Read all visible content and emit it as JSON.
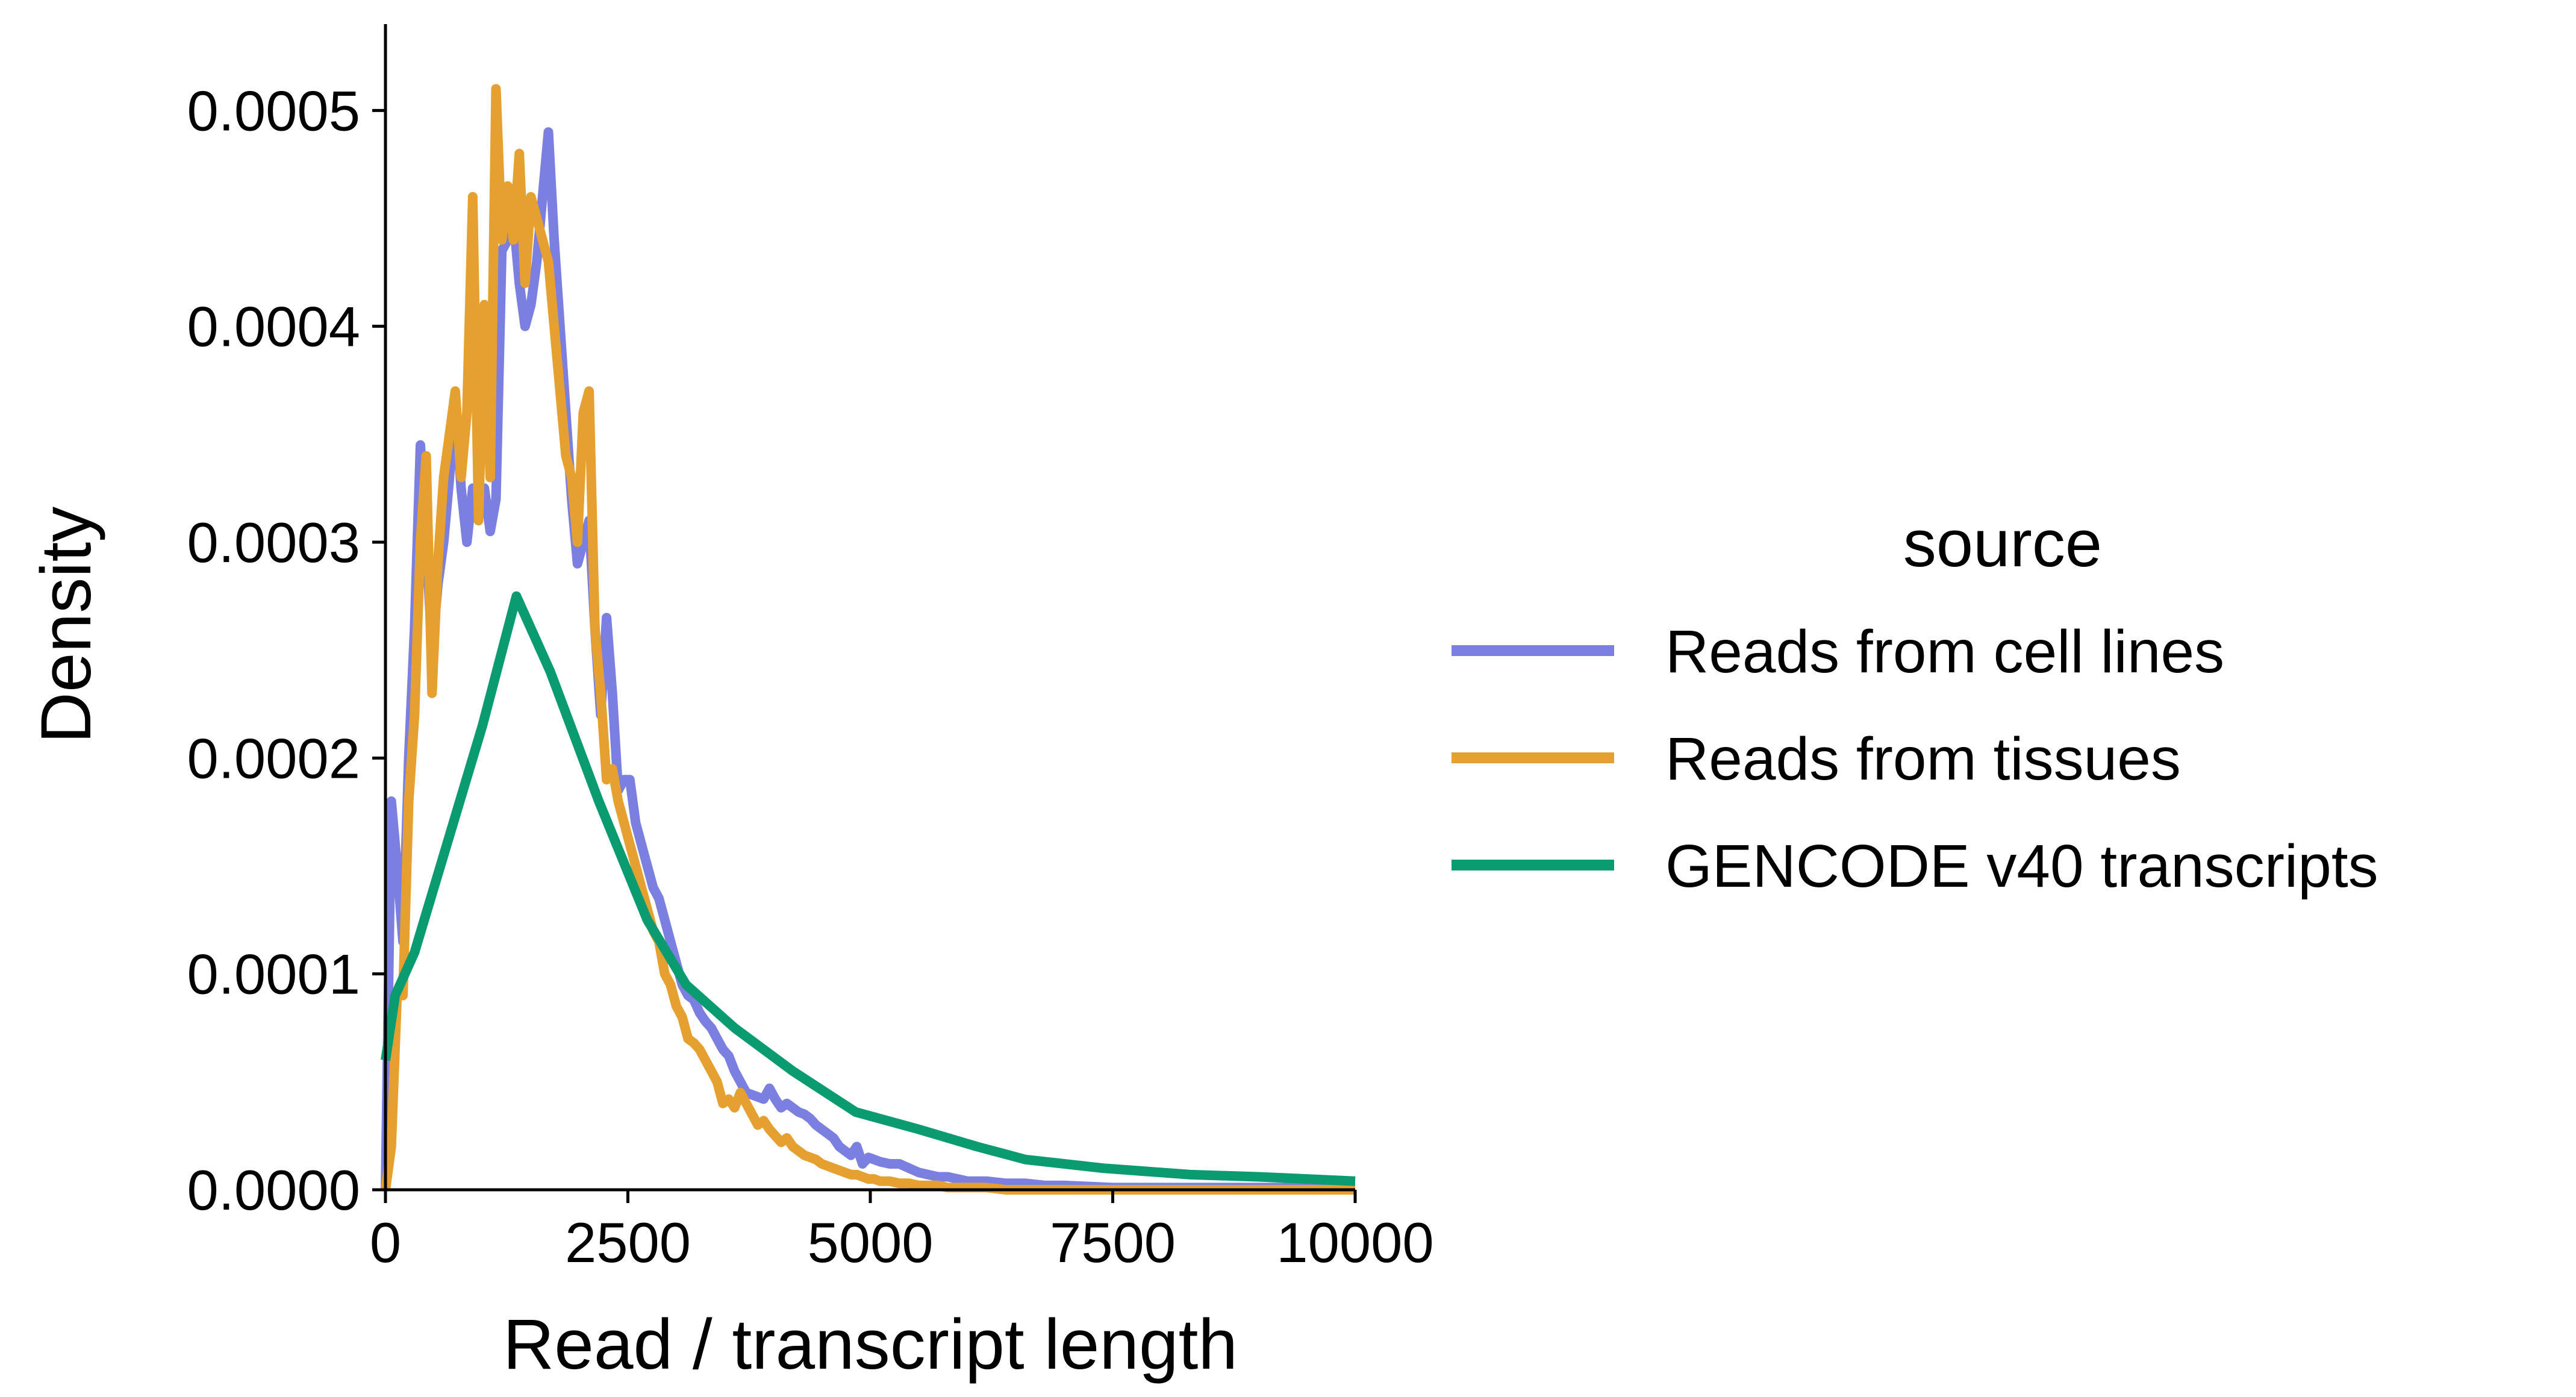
{
  "chart_data": {
    "type": "line",
    "xlabel": "Read / transcript length",
    "ylabel": "Density",
    "xlim": [
      0,
      10000
    ],
    "ylim": [
      0,
      0.00054
    ],
    "grid": false,
    "legend": {
      "title": "source",
      "placement": "right"
    },
    "x_ticks": [
      {
        "value": 0,
        "label": "0"
      },
      {
        "value": 2500,
        "label": "2500"
      },
      {
        "value": 5000,
        "label": "5000"
      },
      {
        "value": 7500,
        "label": "7500"
      },
      {
        "value": 10000,
        "label": "10000"
      }
    ],
    "y_ticks": [
      {
        "value": 0,
        "label": "0.0000"
      },
      {
        "value": 0.0001,
        "label": "0.0001"
      },
      {
        "value": 0.0002,
        "label": "0.0002"
      },
      {
        "value": 0.0003,
        "label": "0.0003"
      },
      {
        "value": 0.0004,
        "label": "0.0004"
      },
      {
        "value": 0.0005,
        "label": "0.0005"
      }
    ],
    "series": [
      {
        "name": "Reads from cell lines",
        "color": "#7b7fe0",
        "x": [
          0,
          60,
          120,
          180,
          240,
          300,
          360,
          420,
          480,
          540,
          600,
          660,
          720,
          780,
          840,
          900,
          960,
          1020,
          1080,
          1140,
          1200,
          1260,
          1320,
          1380,
          1440,
          1500,
          1560,
          1620,
          1680,
          1740,
          1800,
          1860,
          1920,
          1980,
          2040,
          2100,
          2160,
          2220,
          2280,
          2340,
          2400,
          2460,
          2520,
          2580,
          2640,
          2700,
          2760,
          2820,
          2880,
          2940,
          3000,
          3060,
          3120,
          3180,
          3240,
          3300,
          3360,
          3420,
          3480,
          3540,
          3600,
          3660,
          3720,
          3780,
          3840,
          3900,
          3960,
          4020,
          4080,
          4140,
          4200,
          4260,
          4320,
          4380,
          4440,
          4500,
          4560,
          4620,
          4680,
          4740,
          4800,
          4860,
          4920,
          4980,
          5040,
          5100,
          5200,
          5300,
          5400,
          5500,
          5600,
          5700,
          5800,
          5900,
          6000,
          6200,
          6400,
          6600,
          6800,
          7000,
          7500,
          8000,
          8500,
          9000,
          9500,
          10000
        ],
        "values": [
          0.0,
          0.00018,
          0.00015,
          0.000115,
          0.0002,
          0.00026,
          0.000345,
          0.0003,
          0.00025,
          0.00028,
          0.0003,
          0.00033,
          0.000365,
          0.000325,
          0.0003,
          0.000325,
          0.000315,
          0.000325,
          0.000305,
          0.00032,
          0.000435,
          0.00044,
          0.00045,
          0.00042,
          0.0004,
          0.00041,
          0.00043,
          0.00046,
          0.00049,
          0.00044,
          0.0004,
          0.00036,
          0.00032,
          0.00029,
          0.0003,
          0.00031,
          0.00026,
          0.00022,
          0.000265,
          0.00023,
          0.000185,
          0.00019,
          0.00019,
          0.00017,
          0.00016,
          0.00015,
          0.00014,
          0.000135,
          0.000125,
          0.000115,
          0.000105,
          9.5e-05,
          9e-05,
          8.8e-05,
          8.2e-05,
          7.8e-05,
          7.5e-05,
          7e-05,
          6.5e-05,
          6.2e-05,
          5.5e-05,
          5e-05,
          4.5e-05,
          4.4e-05,
          4.3e-05,
          4.2e-05,
          4.7e-05,
          4.2e-05,
          3.8e-05,
          4e-05,
          3.8e-05,
          3.6e-05,
          3.5e-05,
          3.3e-05,
          3e-05,
          2.8e-05,
          2.6e-05,
          2.4e-05,
          2e-05,
          1.8e-05,
          1.6e-05,
          2e-05,
          1.2e-05,
          1.5e-05,
          1.4e-05,
          1.3e-05,
          1.2e-05,
          1.2e-05,
          1e-05,
          8e-06,
          7e-06,
          6e-06,
          6e-06,
          5e-06,
          4e-06,
          4e-06,
          3e-06,
          3e-06,
          2e-06,
          2e-06,
          1e-06,
          1e-06,
          1e-06,
          1e-06,
          1e-06,
          1e-06
        ]
      },
      {
        "name": "Reads from tissues",
        "color": "#e6a02f",
        "x": [
          0,
          60,
          120,
          180,
          240,
          300,
          360,
          420,
          480,
          540,
          600,
          660,
          720,
          780,
          840,
          900,
          960,
          1020,
          1080,
          1140,
          1200,
          1260,
          1320,
          1380,
          1440,
          1500,
          1560,
          1620,
          1680,
          1740,
          1800,
          1860,
          1920,
          1980,
          2040,
          2100,
          2160,
          2220,
          2280,
          2340,
          2400,
          2460,
          2520,
          2580,
          2640,
          2700,
          2760,
          2820,
          2880,
          2940,
          3000,
          3060,
          3120,
          3180,
          3240,
          3300,
          3360,
          3420,
          3480,
          3540,
          3600,
          3660,
          3720,
          3780,
          3840,
          3900,
          3960,
          4020,
          4080,
          4140,
          4200,
          4260,
          4320,
          4380,
          4440,
          4500,
          4560,
          4620,
          4680,
          4740,
          4800,
          4860,
          4920,
          4980,
          5040,
          5100,
          5200,
          5300,
          5400,
          5500,
          5600,
          5700,
          5800,
          5900,
          6000,
          6200,
          6400,
          6600,
          6800,
          7000,
          7500,
          8000,
          8500,
          9000,
          9500,
          10000
        ],
        "values": [
          0.0,
          2e-05,
          9e-05,
          9e-05,
          0.00018,
          0.00022,
          0.0003,
          0.00034,
          0.00023,
          0.00029,
          0.00033,
          0.00035,
          0.00037,
          0.00033,
          0.00036,
          0.00046,
          0.00031,
          0.00041,
          0.00033,
          0.00051,
          0.00044,
          0.000465,
          0.00044,
          0.00048,
          0.00042,
          0.00046,
          0.00045,
          0.00044,
          0.00043,
          0.0004,
          0.00037,
          0.00034,
          0.00033,
          0.0003,
          0.00036,
          0.00037,
          0.00026,
          0.00023,
          0.00019,
          0.000195,
          0.00018,
          0.00017,
          0.00016,
          0.00015,
          0.00014,
          0.00013,
          0.00012,
          0.000115,
          0.0001,
          9.5e-05,
          8.5e-05,
          8e-05,
          7e-05,
          6.8e-05,
          6.5e-05,
          6e-05,
          5.5e-05,
          5e-05,
          4e-05,
          4.2e-05,
          3.8e-05,
          4.5e-05,
          4e-05,
          3.5e-05,
          3e-05,
          3.2e-05,
          2.8e-05,
          2.5e-05,
          2.2e-05,
          2.4e-05,
          2e-05,
          1.8e-05,
          1.6e-05,
          1.5e-05,
          1.4e-05,
          1.2e-05,
          1.1e-05,
          1e-05,
          9e-06,
          8e-06,
          7e-06,
          7e-06,
          6e-06,
          5e-06,
          5e-06,
          4e-06,
          4e-06,
          3e-06,
          3e-06,
          2e-06,
          2e-06,
          2e-06,
          1e-06,
          1e-06,
          1e-06,
          1e-06,
          0.0,
          0.0,
          0.0,
          0.0,
          0.0,
          0.0,
          0.0,
          0.0,
          0.0,
          0.0
        ]
      },
      {
        "name": "GENCODE v40 transcripts",
        "color": "#0a9b71",
        "x": [
          0,
          100,
          300,
          700,
          1000,
          1350,
          1700,
          2200,
          2700,
          3100,
          3600,
          4200,
          4850,
          5500,
          6100,
          6600,
          7400,
          8300,
          9000,
          10000
        ],
        "values": [
          6e-05,
          9e-05,
          0.00011,
          0.00017,
          0.000215,
          0.000275,
          0.00024,
          0.00018,
          0.000125,
          9.5e-05,
          7.5e-05,
          5.5e-05,
          3.6e-05,
          2.8e-05,
          2e-05,
          1.4e-05,
          1e-05,
          7e-06,
          6e-06,
          4e-06
        ]
      }
    ]
  }
}
